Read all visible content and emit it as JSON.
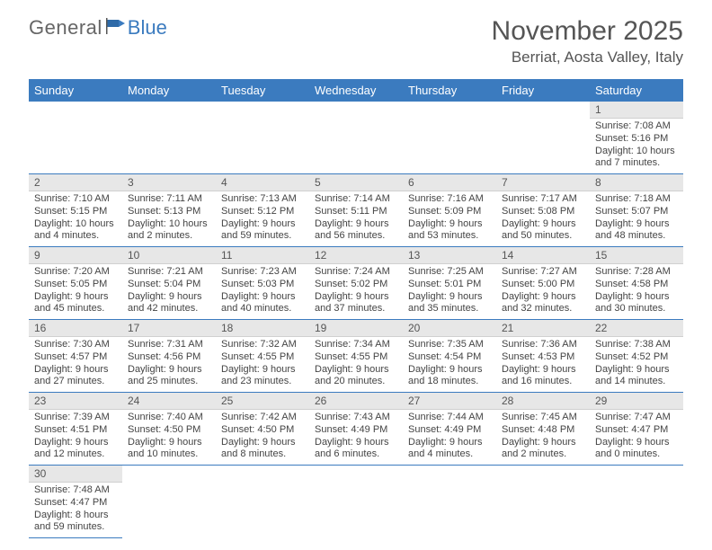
{
  "logo": {
    "text1": "General",
    "text2": "Blue"
  },
  "title": "November 2025",
  "location": "Berriat, Aosta Valley, Italy",
  "colors": {
    "header_bg": "#3b7bbf",
    "header_text": "#ffffff",
    "day_hdr_bg": "#e7e7e7",
    "border": "#3b7bbf",
    "text": "#444444"
  },
  "day_headers": [
    "Sunday",
    "Monday",
    "Tuesday",
    "Wednesday",
    "Thursday",
    "Friday",
    "Saturday"
  ],
  "weeks": [
    [
      null,
      null,
      null,
      null,
      null,
      null,
      {
        "n": "1",
        "sr": "Sunrise: 7:08 AM",
        "ss": "Sunset: 5:16 PM",
        "d1": "Daylight: 10 hours",
        "d2": "and 7 minutes."
      }
    ],
    [
      {
        "n": "2",
        "sr": "Sunrise: 7:10 AM",
        "ss": "Sunset: 5:15 PM",
        "d1": "Daylight: 10 hours",
        "d2": "and 4 minutes."
      },
      {
        "n": "3",
        "sr": "Sunrise: 7:11 AM",
        "ss": "Sunset: 5:13 PM",
        "d1": "Daylight: 10 hours",
        "d2": "and 2 minutes."
      },
      {
        "n": "4",
        "sr": "Sunrise: 7:13 AM",
        "ss": "Sunset: 5:12 PM",
        "d1": "Daylight: 9 hours",
        "d2": "and 59 minutes."
      },
      {
        "n": "5",
        "sr": "Sunrise: 7:14 AM",
        "ss": "Sunset: 5:11 PM",
        "d1": "Daylight: 9 hours",
        "d2": "and 56 minutes."
      },
      {
        "n": "6",
        "sr": "Sunrise: 7:16 AM",
        "ss": "Sunset: 5:09 PM",
        "d1": "Daylight: 9 hours",
        "d2": "and 53 minutes."
      },
      {
        "n": "7",
        "sr": "Sunrise: 7:17 AM",
        "ss": "Sunset: 5:08 PM",
        "d1": "Daylight: 9 hours",
        "d2": "and 50 minutes."
      },
      {
        "n": "8",
        "sr": "Sunrise: 7:18 AM",
        "ss": "Sunset: 5:07 PM",
        "d1": "Daylight: 9 hours",
        "d2": "and 48 minutes."
      }
    ],
    [
      {
        "n": "9",
        "sr": "Sunrise: 7:20 AM",
        "ss": "Sunset: 5:05 PM",
        "d1": "Daylight: 9 hours",
        "d2": "and 45 minutes."
      },
      {
        "n": "10",
        "sr": "Sunrise: 7:21 AM",
        "ss": "Sunset: 5:04 PM",
        "d1": "Daylight: 9 hours",
        "d2": "and 42 minutes."
      },
      {
        "n": "11",
        "sr": "Sunrise: 7:23 AM",
        "ss": "Sunset: 5:03 PM",
        "d1": "Daylight: 9 hours",
        "d2": "and 40 minutes."
      },
      {
        "n": "12",
        "sr": "Sunrise: 7:24 AM",
        "ss": "Sunset: 5:02 PM",
        "d1": "Daylight: 9 hours",
        "d2": "and 37 minutes."
      },
      {
        "n": "13",
        "sr": "Sunrise: 7:25 AM",
        "ss": "Sunset: 5:01 PM",
        "d1": "Daylight: 9 hours",
        "d2": "and 35 minutes."
      },
      {
        "n": "14",
        "sr": "Sunrise: 7:27 AM",
        "ss": "Sunset: 5:00 PM",
        "d1": "Daylight: 9 hours",
        "d2": "and 32 minutes."
      },
      {
        "n": "15",
        "sr": "Sunrise: 7:28 AM",
        "ss": "Sunset: 4:58 PM",
        "d1": "Daylight: 9 hours",
        "d2": "and 30 minutes."
      }
    ],
    [
      {
        "n": "16",
        "sr": "Sunrise: 7:30 AM",
        "ss": "Sunset: 4:57 PM",
        "d1": "Daylight: 9 hours",
        "d2": "and 27 minutes."
      },
      {
        "n": "17",
        "sr": "Sunrise: 7:31 AM",
        "ss": "Sunset: 4:56 PM",
        "d1": "Daylight: 9 hours",
        "d2": "and 25 minutes."
      },
      {
        "n": "18",
        "sr": "Sunrise: 7:32 AM",
        "ss": "Sunset: 4:55 PM",
        "d1": "Daylight: 9 hours",
        "d2": "and 23 minutes."
      },
      {
        "n": "19",
        "sr": "Sunrise: 7:34 AM",
        "ss": "Sunset: 4:55 PM",
        "d1": "Daylight: 9 hours",
        "d2": "and 20 minutes."
      },
      {
        "n": "20",
        "sr": "Sunrise: 7:35 AM",
        "ss": "Sunset: 4:54 PM",
        "d1": "Daylight: 9 hours",
        "d2": "and 18 minutes."
      },
      {
        "n": "21",
        "sr": "Sunrise: 7:36 AM",
        "ss": "Sunset: 4:53 PM",
        "d1": "Daylight: 9 hours",
        "d2": "and 16 minutes."
      },
      {
        "n": "22",
        "sr": "Sunrise: 7:38 AM",
        "ss": "Sunset: 4:52 PM",
        "d1": "Daylight: 9 hours",
        "d2": "and 14 minutes."
      }
    ],
    [
      {
        "n": "23",
        "sr": "Sunrise: 7:39 AM",
        "ss": "Sunset: 4:51 PM",
        "d1": "Daylight: 9 hours",
        "d2": "and 12 minutes."
      },
      {
        "n": "24",
        "sr": "Sunrise: 7:40 AM",
        "ss": "Sunset: 4:50 PM",
        "d1": "Daylight: 9 hours",
        "d2": "and 10 minutes."
      },
      {
        "n": "25",
        "sr": "Sunrise: 7:42 AM",
        "ss": "Sunset: 4:50 PM",
        "d1": "Daylight: 9 hours",
        "d2": "and 8 minutes."
      },
      {
        "n": "26",
        "sr": "Sunrise: 7:43 AM",
        "ss": "Sunset: 4:49 PM",
        "d1": "Daylight: 9 hours",
        "d2": "and 6 minutes."
      },
      {
        "n": "27",
        "sr": "Sunrise: 7:44 AM",
        "ss": "Sunset: 4:49 PM",
        "d1": "Daylight: 9 hours",
        "d2": "and 4 minutes."
      },
      {
        "n": "28",
        "sr": "Sunrise: 7:45 AM",
        "ss": "Sunset: 4:48 PM",
        "d1": "Daylight: 9 hours",
        "d2": "and 2 minutes."
      },
      {
        "n": "29",
        "sr": "Sunrise: 7:47 AM",
        "ss": "Sunset: 4:47 PM",
        "d1": "Daylight: 9 hours",
        "d2": "and 0 minutes."
      }
    ],
    [
      {
        "n": "30",
        "sr": "Sunrise: 7:48 AM",
        "ss": "Sunset: 4:47 PM",
        "d1": "Daylight: 8 hours",
        "d2": "and 59 minutes."
      },
      null,
      null,
      null,
      null,
      null,
      null
    ]
  ]
}
